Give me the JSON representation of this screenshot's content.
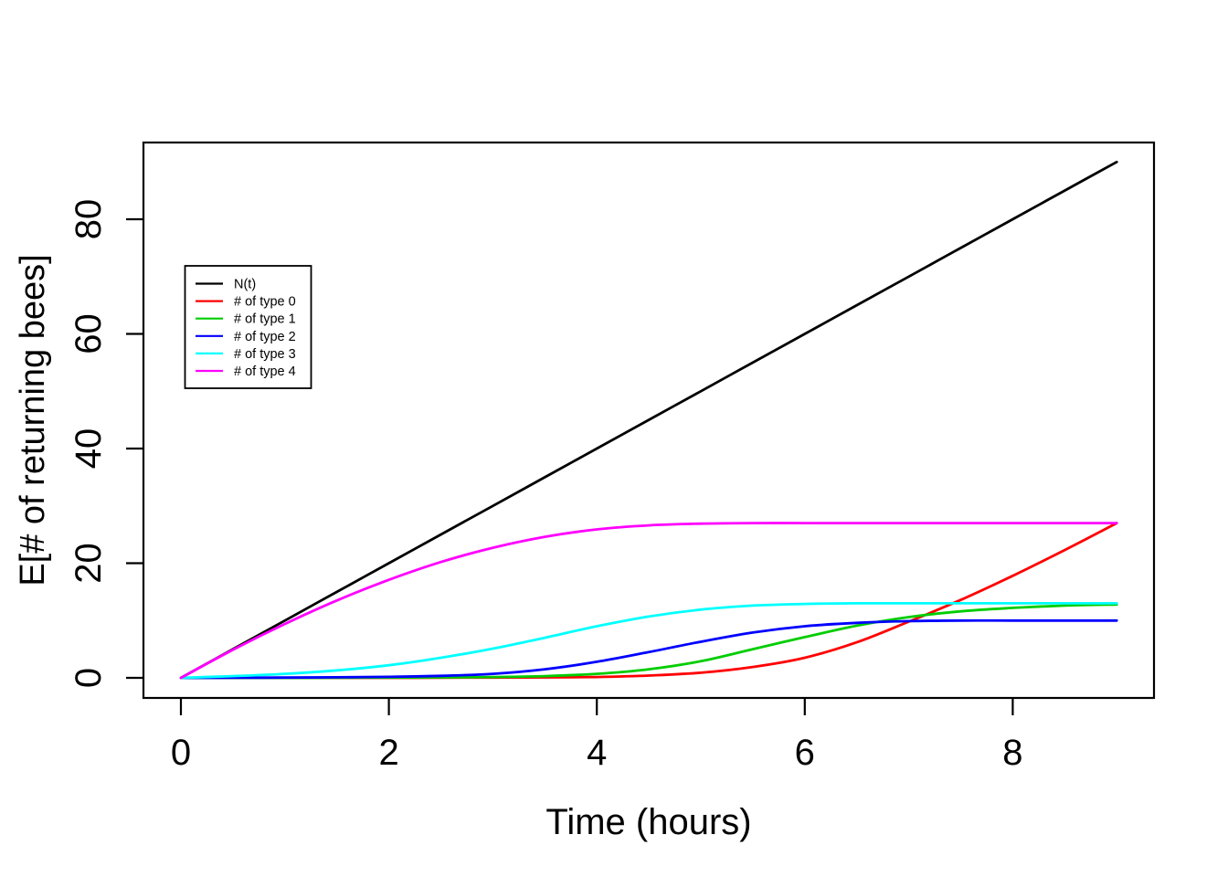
{
  "figure": {
    "background": "#ffffff",
    "plot_border_color": "#000000"
  },
  "chart_data": {
    "type": "line",
    "title": "",
    "xlabel": "Time (hours)",
    "ylabel": "E[# of returning bees]",
    "x_ticks": [
      0,
      2,
      4,
      6,
      8
    ],
    "y_ticks": [
      0,
      20,
      40,
      60,
      80
    ],
    "xlim": [
      -0.36,
      9.36
    ],
    "ylim": [
      -3.6,
      93.6
    ],
    "grid": false,
    "legend_position": "upper-left-inside",
    "x": [
      0,
      0.5,
      1,
      1.5,
      2,
      2.5,
      3,
      3.5,
      4,
      4.5,
      5,
      5.5,
      6,
      6.5,
      7,
      7.5,
      8,
      8.5,
      9
    ],
    "series": [
      {
        "name": "N(t)",
        "color": "#000000",
        "values": [
          0,
          5,
          10,
          15,
          20,
          25,
          30,
          35,
          40,
          45,
          50,
          55,
          60,
          65,
          70,
          75,
          80,
          85,
          90
        ]
      },
      {
        "name": "# of type 0",
        "color": "#FF0000",
        "values": [
          0,
          0,
          0,
          0,
          0,
          0.02,
          0.05,
          0.08,
          0.15,
          0.4,
          0.9,
          1.9,
          3.5,
          6.2,
          9.8,
          13.6,
          17.8,
          22.3,
          27
        ]
      },
      {
        "name": "# of type 1",
        "color": "#00CD00",
        "values": [
          0,
          0,
          0,
          0.02,
          0.05,
          0.08,
          0.15,
          0.3,
          0.7,
          1.5,
          2.9,
          5.0,
          7.1,
          9.1,
          10.6,
          11.6,
          12.2,
          12.6,
          12.8
        ]
      },
      {
        "name": "# of type 2",
        "color": "#0000FF",
        "values": [
          0,
          0.02,
          0.05,
          0.1,
          0.18,
          0.35,
          0.7,
          1.5,
          2.8,
          4.5,
          6.3,
          7.9,
          9.0,
          9.6,
          9.9,
          10,
          10,
          10,
          10
        ]
      },
      {
        "name": "# of type 3",
        "color": "#00FFFF",
        "values": [
          0,
          0.3,
          0.7,
          1.3,
          2.2,
          3.5,
          5.1,
          7.0,
          9.0,
          10.7,
          11.9,
          12.6,
          12.9,
          13,
          13,
          13,
          13,
          13,
          13
        ]
      },
      {
        "name": "# of type 4",
        "color": "#FF00FF",
        "values": [
          0,
          4.9,
          9.4,
          13.5,
          17.1,
          20.2,
          22.7,
          24.6,
          25.9,
          26.6,
          26.9,
          27,
          27,
          27,
          27,
          27,
          27,
          27,
          27
        ]
      }
    ]
  }
}
